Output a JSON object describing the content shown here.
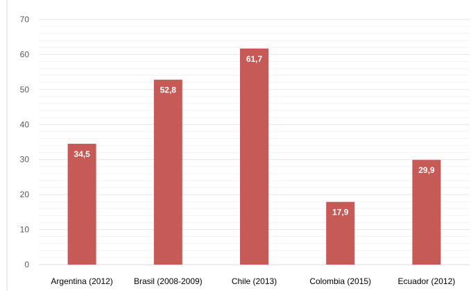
{
  "chart_data": {
    "type": "bar",
    "title": "",
    "xlabel": "",
    "ylabel": "",
    "categories": [
      "Argentina (2012)",
      "Brasil (2008-2009)",
      "Chile (2013)",
      "Colombia (2015)",
      "Ecuador (2012)"
    ],
    "values": [
      34.5,
      52.8,
      61.7,
      17.9,
      29.9
    ],
    "data_labels": [
      "34,5",
      "52,8",
      "61,7",
      "17,9",
      "29,9"
    ],
    "y_ticks": [
      "0",
      "10",
      "20",
      "30",
      "40",
      "50",
      "60",
      "70"
    ],
    "ylim": [
      0,
      70
    ],
    "grid": true,
    "legend": "none",
    "colors": {
      "bar": "#c55a57",
      "major_grid": "#e6e6e6",
      "minor_grid": "#f2f2f2",
      "axis": "#d9d9d9"
    }
  }
}
